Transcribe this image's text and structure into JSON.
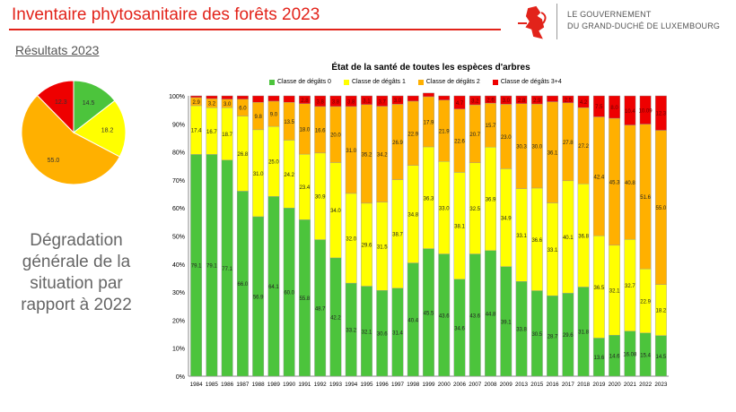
{
  "header": {
    "title": "Inventaire phytosanitaire des forêts 2023",
    "gov_line1": "LE GOUVERNEMENT",
    "gov_line2": "DU GRAND-DUCHÉ DE LUXEMBOURG",
    "logo": "red-lion-icon"
  },
  "subtitle": "Résultats 2023",
  "note": "Dégradation générale de la situation par rapport à 2022",
  "colors": {
    "c0": "#4cc43c",
    "c1": "#ffff00",
    "c2": "#ffb000",
    "c34": "#ee0000"
  },
  "chart_data": [
    {
      "type": "pie",
      "values": [
        14.5,
        18.2,
        55.0,
        12.3
      ],
      "labels": [
        "14.5",
        "18.2",
        "55.0",
        "12.3"
      ]
    },
    {
      "type": "bar",
      "stacked": true,
      "title": "État de la santé de toutes les espèces d'arbres",
      "ylim": [
        0,
        100
      ],
      "yticks": [
        "0%",
        "10%",
        "20%",
        "30%",
        "40%",
        "50%",
        "60%",
        "70%",
        "80%",
        "90%",
        "100%"
      ],
      "legend_position": "top",
      "categories": [
        "1984",
        "1985",
        "1986",
        "1987",
        "1988",
        "1989",
        "1990",
        "1991",
        "1992",
        "1993",
        "1994",
        "1995",
        "1996",
        "1997",
        "1998",
        "1999",
        "2000",
        "2006",
        "2007",
        "2008",
        "2009",
        "2013",
        "2015",
        "2016",
        "2017",
        "2018",
        "2019",
        "2020",
        "2021",
        "2022",
        "2023"
      ],
      "series": [
        {
          "name": "Classe de dégâts 0",
          "values": [
            79.1,
            79.1,
            77.1,
            66.0,
            56.9,
            64.1,
            60.0,
            55.8,
            48.7,
            42.2,
            33.2,
            32.1,
            30.6,
            31.4,
            40.4,
            45.5,
            43.6,
            34.6,
            43.6,
            44.8,
            39.1,
            33.8,
            30.5,
            28.7,
            29.6,
            31.8,
            13.6,
            14.6,
            16.08,
            15.4,
            14.5
          ]
        },
        {
          "name": "Classe de dégâts 1",
          "values": [
            17.4,
            16.7,
            18.7,
            26.8,
            31.0,
            25.0,
            24.2,
            23.4,
            30.9,
            34.0,
            32.0,
            29.6,
            31.5,
            38.7,
            34.8,
            36.3,
            33.0,
            38.1,
            32.5,
            36.9,
            34.9,
            33.1,
            36.6,
            33.1,
            40.1,
            36.8,
            36.5,
            32.1,
            32.7,
            22.9,
            18.2
          ]
        },
        {
          "name": "Classe de dégâts 2",
          "values": [
            2.9,
            3.2,
            3.0,
            6.0,
            9.8,
            9.0,
            13.5,
            18.0,
            16.6,
            20.0,
            31.0,
            35.2,
            34.2,
            26.9,
            22.9,
            17.9,
            21.9,
            22.6,
            20.7,
            15.7,
            23.0,
            30.3,
            30.0,
            36.1,
            27.8,
            27.2,
            42.4,
            45.3,
            40.8,
            51.6,
            55.0
          ]
        },
        {
          "name": "Classe de dégâts 3+4",
          "values": [
            0.6,
            1.0,
            1.2,
            1.2,
            2.3,
            1.9,
            2.3,
            2.8,
            3.8,
            3.8,
            3.8,
            3.1,
            3.7,
            3.0,
            1.9,
            1.3,
            1.5,
            4.7,
            3.2,
            2.6,
            3.0,
            2.8,
            2.9,
            2.1,
            2.5,
            4.2,
            7.5,
            8.0,
            10.4,
            10.09,
            12.3
          ]
        }
      ]
    }
  ]
}
